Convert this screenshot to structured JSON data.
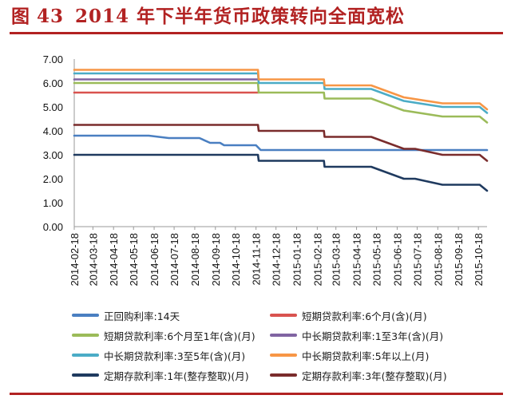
{
  "figure": {
    "label": "图",
    "number": "43",
    "title": "2014 年下半年货币政策转向全面宽松"
  },
  "chart_data": {
    "type": "line",
    "x": [
      "2014-02-18",
      "2014-03-18",
      "2014-04-18",
      "2014-05-18",
      "2014-06-18",
      "2014-07-18",
      "2014-08-18",
      "2014-09-18",
      "2014-10-18",
      "2014-11-18",
      "2014-12-18",
      "2015-01-18",
      "2015-02-18",
      "2015-03-18",
      "2015-04-18",
      "2015-05-18",
      "2015-06-18",
      "2015-07-18",
      "2015-08-18",
      "2015-09-18",
      "2015-10-18"
    ],
    "x_start": "2014-02-18",
    "x_end": "2015-10-31",
    "ylim": [
      0,
      7
    ],
    "yticks": [
      "0.00",
      "1.00",
      "2.00",
      "3.00",
      "4.00",
      "5.00",
      "6.00",
      "7.00"
    ],
    "grid": false,
    "legend_position": "bottom",
    "series": [
      {
        "name": "正回购利率:14天",
        "color": "#4a7fc1",
        "points": [
          [
            "2014-02-18",
            3.8
          ],
          [
            "2014-06-10",
            3.8
          ],
          [
            "2014-07-10",
            3.7
          ],
          [
            "2014-08-25",
            3.7
          ],
          [
            "2014-09-10",
            3.5
          ],
          [
            "2014-09-25",
            3.5
          ],
          [
            "2014-10-01",
            3.4
          ],
          [
            "2014-10-28",
            3.4
          ],
          [
            "2014-11-18",
            3.4
          ],
          [
            "2014-11-25",
            3.2
          ],
          [
            "2015-10-31",
            3.2
          ]
        ]
      },
      {
        "name": "短期贷款利率:6个月(含)(月)",
        "color": "#d9534f",
        "points": [
          [
            "2014-02-18",
            5.6
          ],
          [
            "2014-11-21",
            5.6
          ]
        ]
      },
      {
        "name": "短期贷款利率:6个月至1年(含)(月)",
        "color": "#9bbb59",
        "points": [
          [
            "2014-02-18",
            6.0
          ],
          [
            "2014-11-21",
            6.0
          ],
          [
            "2014-11-22",
            5.6
          ],
          [
            "2015-02-28",
            5.6
          ],
          [
            "2015-03-01",
            5.35
          ],
          [
            "2015-05-10",
            5.35
          ],
          [
            "2015-06-28",
            4.85
          ],
          [
            "2015-08-25",
            4.6
          ],
          [
            "2015-10-20",
            4.6
          ],
          [
            "2015-10-31",
            4.35
          ]
        ]
      },
      {
        "name": "中长期贷款利率:1至3年(含)(月)",
        "color": "#8064a2",
        "points": [
          [
            "2014-02-18",
            6.15
          ],
          [
            "2014-11-21",
            6.15
          ]
        ]
      },
      {
        "name": "中长期贷款利率:3至5年(含)(月)",
        "color": "#4bacc6",
        "points": [
          [
            "2014-02-18",
            6.4
          ],
          [
            "2014-11-21",
            6.4
          ],
          [
            "2014-11-22",
            6.0
          ],
          [
            "2015-02-28",
            6.0
          ],
          [
            "2015-03-01",
            5.75
          ],
          [
            "2015-05-10",
            5.75
          ],
          [
            "2015-06-28",
            5.25
          ],
          [
            "2015-08-25",
            5.0
          ],
          [
            "2015-10-20",
            5.0
          ],
          [
            "2015-10-31",
            4.75
          ]
        ]
      },
      {
        "name": "中长期贷款利率:5年以上(月)",
        "color": "#f79646",
        "points": [
          [
            "2014-02-18",
            6.55
          ],
          [
            "2014-11-21",
            6.55
          ],
          [
            "2014-11-22",
            6.15
          ],
          [
            "2015-02-28",
            6.15
          ],
          [
            "2015-03-01",
            5.9
          ],
          [
            "2015-05-10",
            5.9
          ],
          [
            "2015-06-28",
            5.4
          ],
          [
            "2015-08-25",
            5.15
          ],
          [
            "2015-10-20",
            5.15
          ],
          [
            "2015-10-31",
            4.9
          ]
        ]
      },
      {
        "name": "定期存款利率:1年(整存整取)(月)",
        "color": "#1f3a5f",
        "points": [
          [
            "2014-02-18",
            3.0
          ],
          [
            "2014-11-21",
            3.0
          ],
          [
            "2014-11-22",
            2.75
          ],
          [
            "2015-02-28",
            2.75
          ],
          [
            "2015-03-01",
            2.5
          ],
          [
            "2015-05-10",
            2.5
          ],
          [
            "2015-06-28",
            2.0
          ],
          [
            "2015-07-15",
            2.0
          ],
          [
            "2015-08-25",
            1.75
          ],
          [
            "2015-10-20",
            1.75
          ],
          [
            "2015-10-31",
            1.5
          ]
        ]
      },
      {
        "name": "定期存款利率:3年(整存整取)(月)",
        "color": "#7a2c2c",
        "points": [
          [
            "2014-02-18",
            4.25
          ],
          [
            "2014-11-21",
            4.25
          ],
          [
            "2014-11-22",
            4.0
          ],
          [
            "2015-02-28",
            4.0
          ],
          [
            "2015-03-01",
            3.75
          ],
          [
            "2015-05-10",
            3.75
          ],
          [
            "2015-06-28",
            3.25
          ],
          [
            "2015-07-15",
            3.25
          ],
          [
            "2015-08-25",
            3.0
          ],
          [
            "2015-10-20",
            3.0
          ],
          [
            "2015-10-31",
            2.75
          ]
        ]
      }
    ]
  }
}
